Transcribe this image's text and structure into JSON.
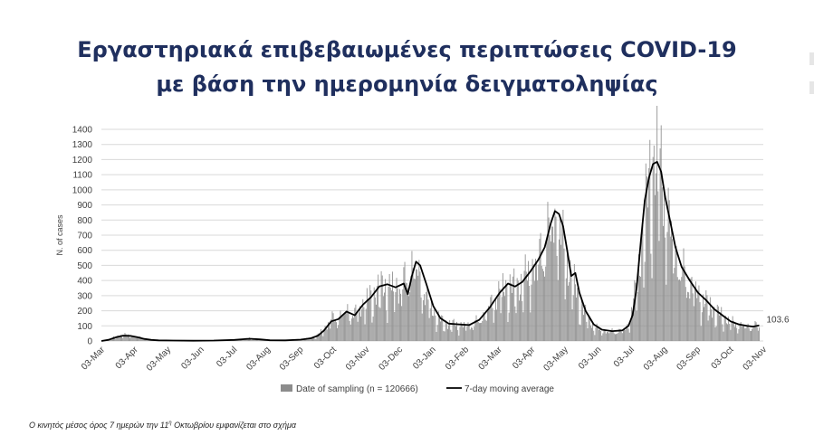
{
  "title_line1": "Εργαστηριακά επιβεβαιωμένες περιπτώσεις COVID-19",
  "title_line2": "με βάση την ημερομηνία δειγματοληψίας",
  "footnote": {
    "text_before": "Ο κινητός μέσος όρος 7 ημερών την 11",
    "superscript": "η",
    "text_after": " Οκτωβρίου εμφανίζεται στο σχήμα"
  },
  "chart_data": {
    "type": "bar",
    "ylabel": "N. of cases",
    "xlabel": "",
    "ylim": [
      0,
      1400
    ],
    "yticks": [
      0,
      100,
      200,
      300,
      400,
      500,
      600,
      700,
      800,
      900,
      1000,
      1100,
      1200,
      1300,
      1400
    ],
    "xlim": [
      "03-Mar",
      "03-Nov"
    ],
    "xticks": [
      "03-Mar",
      "03-Apr",
      "03-May",
      "03-Jun",
      "03-Jul",
      "03-Aug",
      "03-Sep",
      "03-Oct",
      "03-Nov",
      "03-Dec",
      "03-Jan",
      "03-Feb",
      "03-Mar",
      "03-Apr",
      "03-May",
      "03-Jun",
      "03-Jul",
      "03-Aug",
      "03-Sep",
      "03-Oct",
      "03-Nov"
    ],
    "grid": true,
    "legend_position": "bottom",
    "colors": {
      "bars": "#8c8c8c",
      "line": "#000000",
      "grid": "#d9d9d9",
      "title": "#1f2f5e"
    },
    "series": [
      {
        "name": "Date of sampling (n = 120666)",
        "type": "bar",
        "description_points": [
          [
            0,
            0
          ],
          [
            7,
            10
          ],
          [
            14,
            28
          ],
          [
            21,
            42
          ],
          [
            28,
            38
          ],
          [
            35,
            30
          ],
          [
            42,
            16
          ],
          [
            49,
            8
          ],
          [
            56,
            5
          ],
          [
            70,
            3
          ],
          [
            90,
            2
          ],
          [
            110,
            4
          ],
          [
            130,
            8
          ],
          [
            145,
            18
          ],
          [
            155,
            12
          ],
          [
            165,
            6
          ],
          [
            180,
            4
          ],
          [
            195,
            10
          ],
          [
            205,
            20
          ],
          [
            212,
            40
          ],
          [
            218,
            80
          ],
          [
            225,
            150
          ],
          [
            232,
            160
          ],
          [
            240,
            210
          ],
          [
            248,
            180
          ],
          [
            256,
            250
          ],
          [
            264,
            300
          ],
          [
            272,
            360
          ],
          [
            280,
            370
          ],
          [
            288,
            360
          ],
          [
            296,
            400
          ],
          [
            300,
            420
          ],
          [
            304,
            530
          ],
          [
            308,
            500
          ],
          [
            312,
            420
          ],
          [
            318,
            300
          ],
          [
            325,
            200
          ],
          [
            332,
            140
          ],
          [
            340,
            115
          ],
          [
            350,
            110
          ],
          [
            360,
            105
          ],
          [
            370,
            140
          ],
          [
            380,
            230
          ],
          [
            390,
            330
          ],
          [
            398,
            380
          ],
          [
            405,
            360
          ],
          [
            412,
            400
          ],
          [
            420,
            480
          ],
          [
            428,
            560
          ],
          [
            436,
            700
          ],
          [
            442,
            850
          ],
          [
            448,
            780
          ],
          [
            454,
            600
          ],
          [
            460,
            440
          ],
          [
            466,
            320
          ],
          [
            474,
            180
          ],
          [
            482,
            100
          ],
          [
            490,
            70
          ],
          [
            500,
            65
          ],
          [
            510,
            70
          ],
          [
            516,
            110
          ],
          [
            522,
            300
          ],
          [
            528,
            600
          ],
          [
            534,
            950
          ],
          [
            538,
            1150
          ],
          [
            542,
            1250
          ],
          [
            546,
            1200
          ],
          [
            550,
            1050
          ],
          [
            556,
            800
          ],
          [
            562,
            600
          ],
          [
            568,
            480
          ],
          [
            576,
            400
          ],
          [
            584,
            320
          ],
          [
            592,
            260
          ],
          [
            600,
            210
          ],
          [
            608,
            170
          ],
          [
            616,
            130
          ],
          [
            624,
            110
          ],
          [
            632,
            100
          ],
          [
            638,
            100
          ],
          [
            644,
            105
          ]
        ]
      },
      {
        "name": "7-day moving average",
        "type": "line",
        "points": [
          [
            0,
            0
          ],
          [
            7,
            8
          ],
          [
            14,
            24
          ],
          [
            21,
            35
          ],
          [
            28,
            34
          ],
          [
            35,
            26
          ],
          [
            42,
            14
          ],
          [
            49,
            7
          ],
          [
            56,
            4
          ],
          [
            70,
            3
          ],
          [
            90,
            2
          ],
          [
            110,
            3
          ],
          [
            130,
            7
          ],
          [
            145,
            15
          ],
          [
            155,
            11
          ],
          [
            165,
            5
          ],
          [
            180,
            4
          ],
          [
            195,
            9
          ],
          [
            205,
            18
          ],
          [
            212,
            35
          ],
          [
            218,
            70
          ],
          [
            225,
            130
          ],
          [
            232,
            145
          ],
          [
            240,
            195
          ],
          [
            248,
            170
          ],
          [
            256,
            240
          ],
          [
            264,
            290
          ],
          [
            272,
            360
          ],
          [
            280,
            375
          ],
          [
            288,
            355
          ],
          [
            296,
            380
          ],
          [
            300,
            310
          ],
          [
            304,
            430
          ],
          [
            308,
            525
          ],
          [
            312,
            500
          ],
          [
            318,
            380
          ],
          [
            325,
            230
          ],
          [
            332,
            150
          ],
          [
            340,
            115
          ],
          [
            350,
            110
          ],
          [
            360,
            105
          ],
          [
            370,
            140
          ],
          [
            380,
            220
          ],
          [
            390,
            320
          ],
          [
            398,
            380
          ],
          [
            405,
            360
          ],
          [
            412,
            390
          ],
          [
            420,
            460
          ],
          [
            428,
            540
          ],
          [
            434,
            620
          ],
          [
            440,
            780
          ],
          [
            444,
            860
          ],
          [
            448,
            840
          ],
          [
            452,
            760
          ],
          [
            456,
            600
          ],
          [
            460,
            430
          ],
          [
            464,
            450
          ],
          [
            468,
            320
          ],
          [
            474,
            200
          ],
          [
            482,
            110
          ],
          [
            490,
            75
          ],
          [
            500,
            65
          ],
          [
            510,
            70
          ],
          [
            516,
            100
          ],
          [
            520,
            170
          ],
          [
            524,
            350
          ],
          [
            528,
            650
          ],
          [
            532,
            930
          ],
          [
            536,
            1080
          ],
          [
            540,
            1170
          ],
          [
            544,
            1185
          ],
          [
            548,
            1120
          ],
          [
            552,
            950
          ],
          [
            556,
            820
          ],
          [
            562,
            620
          ],
          [
            568,
            490
          ],
          [
            576,
            400
          ],
          [
            584,
            320
          ],
          [
            592,
            270
          ],
          [
            600,
            210
          ],
          [
            608,
            170
          ],
          [
            616,
            130
          ],
          [
            624,
            110
          ],
          [
            632,
            100
          ],
          [
            638,
            95
          ],
          [
            644,
            103.6
          ]
        ]
      }
    ],
    "annotation": {
      "text": "103.6",
      "x": 644,
      "y": 103.6
    }
  }
}
